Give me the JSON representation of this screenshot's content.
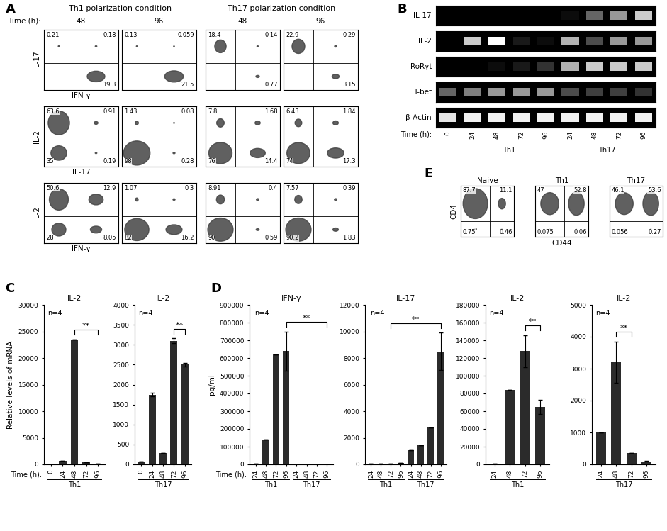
{
  "flow_cytometry": {
    "A": {
      "panel": "A",
      "time_label": "Time (h):",
      "conditions": [
        {
          "name": "Th1 polarization condition",
          "times": [
            "48",
            "96"
          ]
        },
        {
          "name": "Th17 polarization condition",
          "times": [
            "48",
            "96"
          ]
        }
      ],
      "rows": [
        {
          "y": "IL-17",
          "x": "IFN-γ",
          "plots": [
            {
              "ul": "0.21",
              "ur": "0.18",
              "lr": "19.3"
            },
            {
              "ul": "0.13",
              "ur": "0.059",
              "lr": "21.5"
            },
            {
              "ul": "18.4",
              "ur": "0.14",
              "lr": "0.77"
            },
            {
              "ul": "22.9",
              "ur": "0.29",
              "lr": "3.15"
            }
          ]
        },
        {
          "y": "IL-2",
          "x": "IL-17",
          "plots": [
            {
              "ul": "63.6",
              "ur": "0.91",
              "ll": "35",
              "lr": "0.19"
            },
            {
              "ul": "1.43",
              "ur": "0.08",
              "ll": "98",
              "lr": "0.28"
            },
            {
              "ul": "7.8",
              "ur": "1.68",
              "ll": "76",
              "lr": "14.4"
            },
            {
              "ul": "6.43",
              "ur": "1.84",
              "ll": "74",
              "lr": "17.3"
            }
          ]
        },
        {
          "y": "IL-2",
          "x": "IFN-γ",
          "plots": [
            {
              "ul": "50.6",
              "ur": "12.9",
              "ll": "28",
              "lr": "8.05"
            },
            {
              "ul": "1.07",
              "ur": "0.3",
              "ll": "82",
              "lr": "16.2"
            },
            {
              "ul": "8.91",
              "ur": "0.4",
              "ll": "90",
              "lr": "0.59"
            },
            {
              "ul": "7.57",
              "ur": "0.39",
              "ll": "90.2",
              "lr": "1.83"
            }
          ]
        }
      ]
    },
    "E": {
      "panel": "E",
      "x": "CD44",
      "y": "CD4",
      "plots": [
        {
          "title": "Naive",
          "ul": "87.7",
          "ur": "11.1",
          "ll": "0.75",
          "lr": "0.46"
        },
        {
          "title": "Th1",
          "ul": "47",
          "ur": "52.8",
          "ll": "0.075",
          "lr": "0.06"
        },
        {
          "title": "Th17",
          "ul": "46.1",
          "ur": "53.6",
          "ll": "0.056",
          "lr": "0.27"
        }
      ]
    }
  },
  "gel": {
    "panel": "B",
    "time_label": "Time (h):",
    "lanes": [
      "0",
      "24",
      "48",
      "72",
      "96",
      "24",
      "48",
      "72",
      "96"
    ],
    "groups": [
      {
        "label": "Th1",
        "from": 1,
        "to": 4
      },
      {
        "label": "Th17",
        "from": 5,
        "to": 8
      }
    ],
    "rows": [
      {
        "name": "IL-17",
        "intensity": [
          0,
          0,
          0,
          0,
          0,
          0.05,
          0.4,
          0.6,
          0.8
        ]
      },
      {
        "name": "IL-2",
        "intensity": [
          0,
          0.8,
          1.0,
          0.1,
          0.05,
          0.7,
          0.3,
          0.6,
          0.6
        ]
      },
      {
        "name": "RoRγt",
        "intensity": [
          0,
          0,
          0.05,
          0.1,
          0.2,
          0.7,
          0.8,
          0.8,
          0.8
        ]
      },
      {
        "name": "T-bet",
        "intensity": [
          0.4,
          0.5,
          0.6,
          0.6,
          0.6,
          0.3,
          0.25,
          0.25,
          0.2
        ]
      },
      {
        "name": "β-Actin",
        "intensity": [
          0.9,
          0.95,
          0.95,
          0.95,
          0.95,
          0.95,
          0.95,
          0.95,
          0.95
        ]
      }
    ]
  },
  "chart_data": [
    {
      "type": "bar",
      "panel": "C",
      "title": "IL-2",
      "y_label": "Relative levels of mRNA",
      "x_label": "Time (h):",
      "categories": [
        "0",
        "24",
        "48",
        "72",
        "96"
      ],
      "values": [
        30,
        700,
        23500,
        400,
        200
      ],
      "errors": [
        0,
        0,
        0,
        0,
        0
      ],
      "ylim": [
        0,
        30000
      ],
      "yticks": [
        0,
        5000,
        10000,
        15000,
        20000,
        25000,
        30000
      ],
      "color": "#2b2b2b",
      "annotations": [
        "n=4"
      ],
      "significance": {
        "from": 2,
        "to": 4,
        "label": "**"
      },
      "groups": [
        {
          "label": "Th1",
          "from": 0,
          "to": 4
        }
      ]
    },
    {
      "type": "bar",
      "title": "IL-2",
      "categories": [
        "0",
        "24",
        "48",
        "72",
        "96"
      ],
      "values": [
        80,
        1750,
        280,
        3100,
        2500
      ],
      "errors": [
        0,
        50,
        0,
        60,
        50
      ],
      "ylim": [
        0,
        4000
      ],
      "yticks": [
        0,
        500,
        1000,
        1500,
        2000,
        2500,
        3000,
        3500,
        4000
      ],
      "color": "#2b2b2b",
      "annotations": [
        "n=4"
      ],
      "significance": {
        "from": 3,
        "to": 4,
        "label": "**"
      },
      "groups": [
        {
          "label": "Th17",
          "from": 0,
          "to": 4
        }
      ]
    },
    {
      "type": "bar",
      "panel": "D",
      "title": "IFN-γ",
      "y_label": "pg/ml",
      "x_label": "Time (h):",
      "categories": [
        "24",
        "48",
        "72",
        "96",
        "24",
        "48",
        "72",
        "96"
      ],
      "values": [
        5000,
        140000,
        620000,
        640000,
        0,
        0,
        0,
        0
      ],
      "errors": [
        0,
        0,
        0,
        110000,
        0,
        0,
        0,
        0
      ],
      "ylim": [
        0,
        900000
      ],
      "yticks": [
        0,
        100000,
        200000,
        300000,
        400000,
        500000,
        600000,
        700000,
        800000,
        900000
      ],
      "color": "#2b2b2b",
      "annotations": [
        "n=4"
      ],
      "significance": {
        "from": 3,
        "to": 7,
        "label": "**"
      },
      "groups": [
        {
          "label": "Th1",
          "from": 0,
          "to": 3
        },
        {
          "label": "Th17",
          "from": 4,
          "to": 7
        }
      ]
    },
    {
      "type": "bar",
      "title": "IL-17",
      "categories": [
        "24",
        "48",
        "72",
        "96",
        "24",
        "48",
        "72",
        "96"
      ],
      "values": [
        40,
        60,
        80,
        90,
        1050,
        1450,
        2800,
        8500
      ],
      "errors": [
        0,
        0,
        0,
        0,
        0,
        0,
        0,
        1400
      ],
      "ylim": [
        0,
        12000
      ],
      "yticks": [
        0,
        2000,
        4000,
        6000,
        8000,
        10000,
        12000
      ],
      "color": "#2b2b2b",
      "annotations": [
        "n=4"
      ],
      "significance": {
        "from": 2,
        "to": 7,
        "label": "**"
      },
      "groups": [
        {
          "label": "Th1",
          "from": 0,
          "to": 3
        },
        {
          "label": "Th17",
          "from": 4,
          "to": 7
        }
      ]
    },
    {
      "type": "bar",
      "title": "IL-2",
      "categories": [
        "24",
        "48",
        "72",
        "96"
      ],
      "values": [
        1000,
        84000,
        128000,
        65000
      ],
      "errors": [
        0,
        0,
        18000,
        8000
      ],
      "ylim": [
        0,
        180000
      ],
      "yticks": [
        0,
        20000,
        40000,
        60000,
        80000,
        100000,
        120000,
        140000,
        160000,
        180000
      ],
      "color": "#2b2b2b",
      "annotations": [
        "n=4"
      ],
      "significance": {
        "from": 2,
        "to": 3,
        "label": "**"
      },
      "groups": [
        {
          "label": "Th1",
          "from": 0,
          "to": 3
        }
      ]
    },
    {
      "type": "bar",
      "title": "IL-2",
      "categories": [
        "24",
        "48",
        "72",
        "96"
      ],
      "values": [
        1000,
        3200,
        350,
        100
      ],
      "errors": [
        0,
        650,
        0,
        20
      ],
      "ylim": [
        0,
        5000
      ],
      "yticks": [
        0,
        1000,
        2000,
        3000,
        4000,
        5000
      ],
      "color": "#2b2b2b",
      "annotations": [
        "n=4"
      ],
      "significance": {
        "from": 1,
        "to": 2,
        "label": "**"
      },
      "groups": [
        {
          "label": "Th17",
          "from": 0,
          "to": 3
        }
      ]
    }
  ]
}
